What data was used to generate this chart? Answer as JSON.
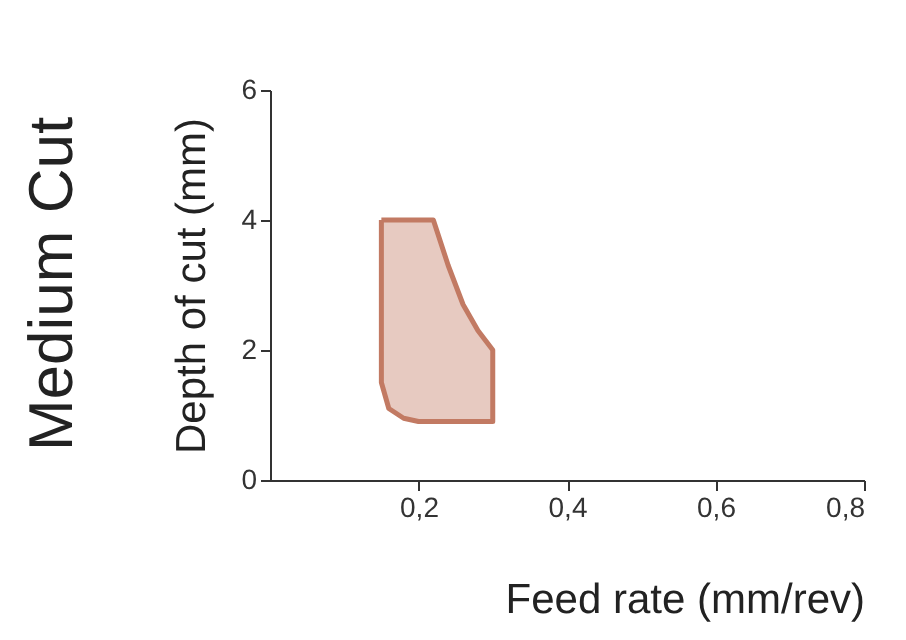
{
  "chart_data": {
    "type": "area",
    "xlabel": "Feed rate (mm/rev)",
    "ylabel": "Depth of cut (mm)",
    "annotations": [
      "Medium Cut"
    ],
    "series": [
      {
        "color": "#c27a63",
        "x": [
          0.15,
          0.22,
          0.24,
          0.26,
          0.28,
          0.3,
          0.3,
          0.2,
          0.18,
          0.16,
          0.15,
          0.15
        ],
        "values": [
          4,
          4,
          3.3,
          2.7,
          2.3,
          2.0,
          0.9,
          0.9,
          0.95,
          1.1,
          1.5,
          4
        ]
      }
    ],
    "xlim": [
      0,
      0.8
    ],
    "xticks": [
      {
        "value": 0.2,
        "label": "0,2"
      },
      {
        "value": 0.4,
        "label": "0,4"
      },
      {
        "value": 0.6,
        "label": "0,6"
      },
      {
        "value": 0.8,
        "label": "0,8"
      }
    ],
    "ylim": [
      0,
      6
    ],
    "yticks": [
      0,
      2,
      4,
      6
    ],
    "grid": false
  }
}
